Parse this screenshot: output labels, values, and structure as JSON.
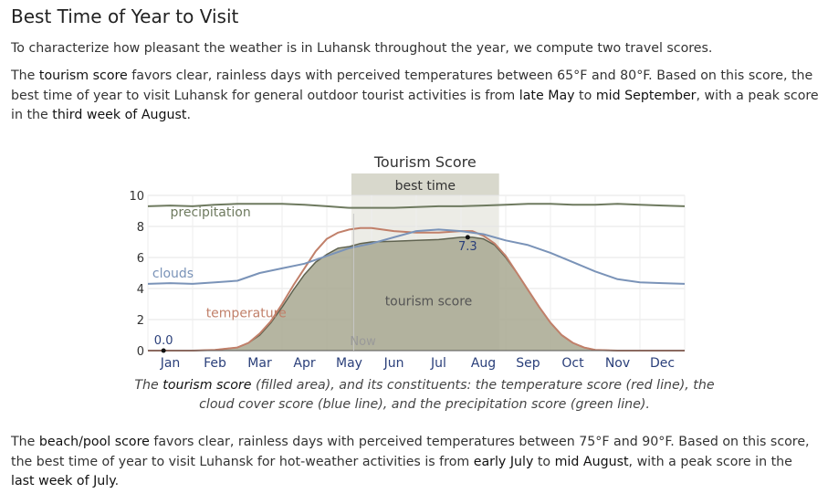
{
  "heading": "Best Time of Year to Visit",
  "intro": "To characterize how pleasant the weather is in Luhansk throughout the year, we compute two travel scores.",
  "tourism_paragraph": {
    "p1": "The ",
    "term": "tourism score",
    "p2": " favors clear, rainless days with perceived temperatures between 65°F and 80°F. Based on this score, the best time of year to visit Luhansk for general outdoor tourist activities is from ",
    "start": "late May",
    "p3": " to ",
    "end": "mid September",
    "p4": ", with a peak score in the ",
    "peak": "third week of August",
    "p5": "."
  },
  "caption": {
    "p1": "The ",
    "term": "tourism score",
    "p2": " (filled area), and its constituents: the temperature score (red line), the cloud cover score (blue line), and the precipitation score (green line)."
  },
  "beach_paragraph": {
    "p1": "The ",
    "term": "beach/pool score",
    "p2": " favors clear, rainless days with perceived temperatures between 75°F and 90°F. Based on this score, the best time of year to visit Luhansk for hot-weather activities is from ",
    "start": "early July",
    "p3": " to ",
    "end": "mid August",
    "p4": ", with a peak score in the ",
    "peak": "last week of July",
    "p5": "."
  },
  "chart_data": {
    "type": "area",
    "title": "Tourism Score",
    "ylim": [
      0,
      10
    ],
    "yticks": [
      0,
      2,
      4,
      6,
      8,
      10
    ],
    "xlim": [
      0,
      12
    ],
    "months": [
      "Jan",
      "Feb",
      "Mar",
      "Apr",
      "May",
      "Jun",
      "Jul",
      "Aug",
      "Sep",
      "Oct",
      "Nov",
      "Dec"
    ],
    "best_time": {
      "label": "best time",
      "start": 4.55,
      "end": 7.85
    },
    "now_marker": {
      "label": "Now",
      "x": 4.6
    },
    "annotations": [
      {
        "text": "0.0",
        "x": 0.35,
        "y": 0.0
      },
      {
        "text": "7.3",
        "x": 7.15,
        "y": 7.3
      }
    ],
    "series": [
      {
        "name": "tourism score",
        "kind": "area",
        "color": "#a8a890",
        "x": [
          0,
          0.5,
          1.0,
          1.5,
          2.0,
          2.25,
          2.5,
          2.75,
          3.0,
          3.25,
          3.5,
          3.75,
          4.0,
          4.25,
          4.5,
          4.75,
          5.0,
          5.5,
          6.0,
          6.5,
          7.0,
          7.25,
          7.5,
          7.75,
          8.0,
          8.25,
          8.5,
          8.75,
          9.0,
          9.25,
          9.5,
          9.75,
          10.0,
          10.5,
          11.0,
          12.0
        ],
        "y": [
          0.0,
          0.0,
          0.0,
          0.05,
          0.2,
          0.5,
          1.0,
          1.8,
          2.8,
          3.9,
          4.9,
          5.7,
          6.2,
          6.6,
          6.7,
          6.9,
          7.0,
          7.05,
          7.1,
          7.15,
          7.3,
          7.3,
          7.2,
          6.8,
          6.0,
          5.0,
          3.9,
          2.8,
          1.8,
          1.0,
          0.5,
          0.2,
          0.05,
          0.0,
          0.0,
          0.0
        ]
      },
      {
        "name": "temperature",
        "kind": "line",
        "color": "#c1806a",
        "x": [
          0,
          0.5,
          1.0,
          1.5,
          2.0,
          2.25,
          2.5,
          2.75,
          3.0,
          3.25,
          3.5,
          3.75,
          4.0,
          4.25,
          4.5,
          4.75,
          5.0,
          5.5,
          6.0,
          6.5,
          7.0,
          7.25,
          7.5,
          7.75,
          8.0,
          8.25,
          8.5,
          8.75,
          9.0,
          9.25,
          9.5,
          9.75,
          10.0,
          10.5,
          11.0,
          12.0
        ],
        "y": [
          0.0,
          0.0,
          0.0,
          0.05,
          0.2,
          0.5,
          1.1,
          1.9,
          3.0,
          4.2,
          5.3,
          6.4,
          7.2,
          7.6,
          7.8,
          7.9,
          7.9,
          7.7,
          7.6,
          7.6,
          7.7,
          7.7,
          7.4,
          6.9,
          6.1,
          5.0,
          3.9,
          2.8,
          1.8,
          1.0,
          0.5,
          0.2,
          0.05,
          0.0,
          0.0,
          0.0
        ]
      },
      {
        "name": "clouds",
        "kind": "line",
        "color": "#7a93b8",
        "x": [
          0,
          0.5,
          1.0,
          1.5,
          2.0,
          2.5,
          3.0,
          3.5,
          4.0,
          4.5,
          5.0,
          5.5,
          6.0,
          6.5,
          7.0,
          7.5,
          8.0,
          8.5,
          9.0,
          9.5,
          10.0,
          10.5,
          11.0,
          11.5,
          12.0
        ],
        "y": [
          4.3,
          4.35,
          4.3,
          4.4,
          4.5,
          5.0,
          5.3,
          5.6,
          6.1,
          6.6,
          6.9,
          7.3,
          7.7,
          7.8,
          7.7,
          7.5,
          7.1,
          6.8,
          6.3,
          5.7,
          5.1,
          4.6,
          4.4,
          4.35,
          4.3
        ]
      },
      {
        "name": "precipitation",
        "kind": "line",
        "color": "#6e7a5f",
        "x": [
          0,
          0.5,
          1.0,
          1.5,
          2.0,
          2.5,
          3.0,
          3.5,
          4.0,
          4.5,
          5.0,
          5.5,
          6.0,
          6.5,
          7.0,
          7.5,
          8.0,
          8.5,
          9.0,
          9.5,
          10.0,
          10.5,
          11.0,
          11.5,
          12.0
        ],
        "y": [
          9.3,
          9.35,
          9.3,
          9.4,
          9.45,
          9.45,
          9.45,
          9.4,
          9.3,
          9.2,
          9.2,
          9.2,
          9.25,
          9.3,
          9.3,
          9.35,
          9.4,
          9.45,
          9.45,
          9.4,
          9.4,
          9.45,
          9.4,
          9.35,
          9.3
        ]
      }
    ],
    "series_labels": [
      {
        "text": "precipitation",
        "x": 0.5,
        "y": 8.65
      },
      {
        "text": "clouds",
        "x": 0.1,
        "y": 4.7
      },
      {
        "text": "temperature",
        "x": 1.3,
        "y": 2.15
      },
      {
        "text": "tourism score",
        "x": 5.3,
        "y": 2.9
      }
    ]
  }
}
